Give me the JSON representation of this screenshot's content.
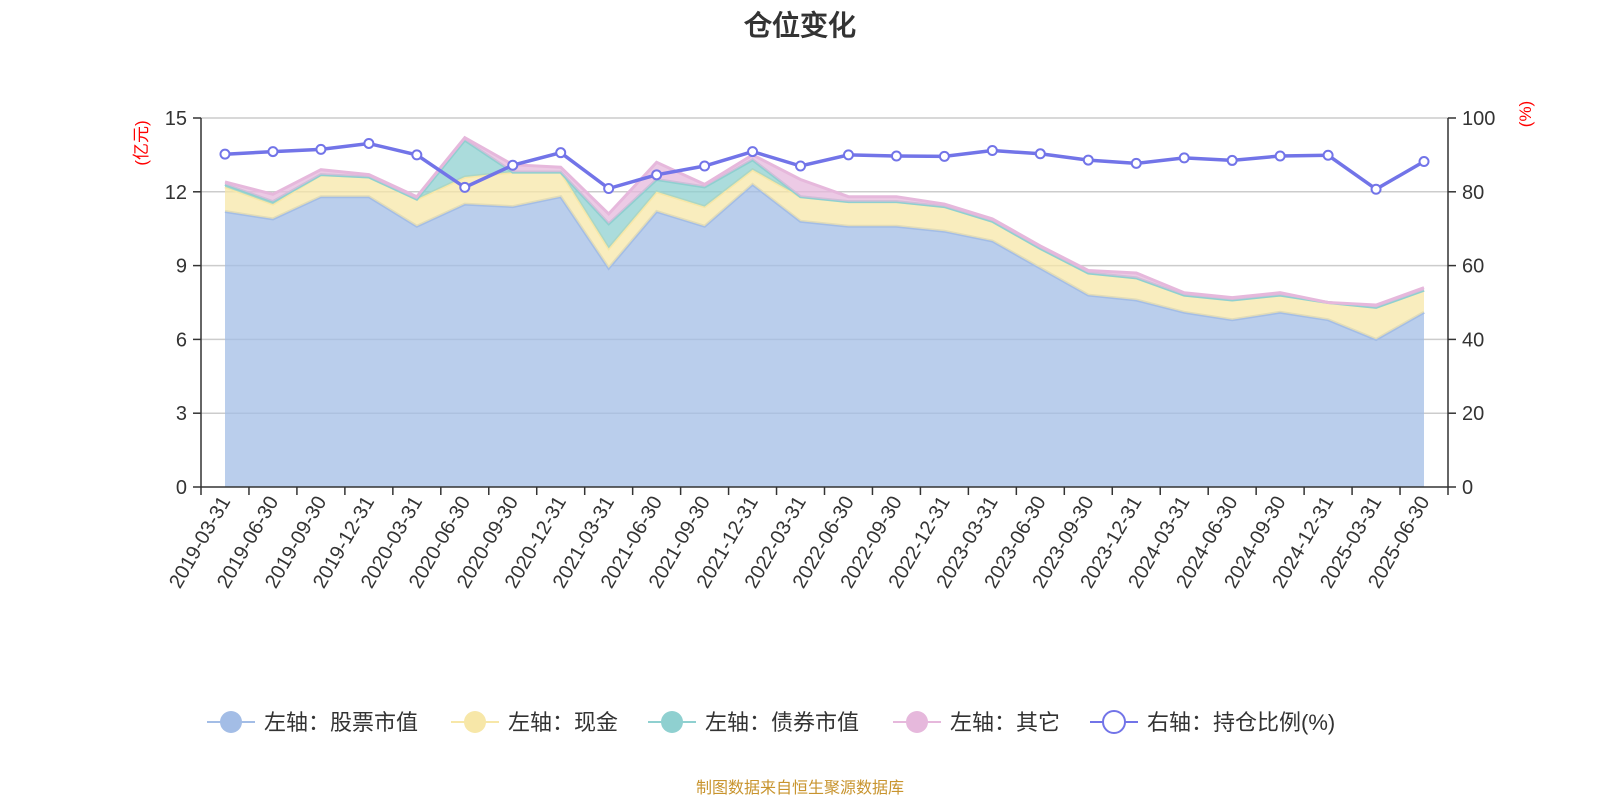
{
  "title": "仓位变化",
  "source_note": "制图数据来自恒生聚源数据库",
  "chart_data": {
    "type": "area",
    "title": "仓位变化",
    "x": [
      "2019-03-31",
      "2019-06-30",
      "2019-09-30",
      "2019-12-31",
      "2020-03-31",
      "2020-06-30",
      "2020-09-30",
      "2020-12-31",
      "2021-03-31",
      "2021-06-30",
      "2021-09-30",
      "2021-12-31",
      "2022-03-31",
      "2022-06-30",
      "2022-09-30",
      "2022-12-31",
      "2023-03-31",
      "2023-06-30",
      "2023-09-30",
      "2023-12-31",
      "2024-03-31",
      "2024-06-30",
      "2024-09-30",
      "2024-12-31",
      "2025-03-31",
      "2025-06-30"
    ],
    "left_axis": {
      "unit": "(亿元)",
      "ylim": [
        0,
        15
      ],
      "ticks": [
        0,
        3,
        6,
        9,
        12,
        15
      ]
    },
    "right_axis": {
      "unit": "(%)",
      "ylim": [
        0,
        100
      ],
      "ticks": [
        0,
        20,
        40,
        60,
        80,
        100
      ]
    },
    "grid": true,
    "legend_position": "bottom",
    "series": [
      {
        "name": "左轴：股票市值",
        "axis": "left",
        "type": "area",
        "color": "#a3bde6",
        "values": [
          11.2,
          10.9,
          11.8,
          11.8,
          10.6,
          11.5,
          11.4,
          11.8,
          8.9,
          11.2,
          10.6,
          12.3,
          10.8,
          10.6,
          10.6,
          10.4,
          10.0,
          8.9,
          7.8,
          7.6,
          7.1,
          6.8,
          7.1,
          6.8,
          6.0,
          7.1
        ]
      },
      {
        "name": "左轴：现金",
        "axis": "left",
        "type": "area",
        "color": "#f7e7a8",
        "values": [
          1.0,
          0.6,
          0.9,
          0.8,
          1.1,
          1.1,
          1.4,
          1.0,
          0.8,
          0.8,
          0.8,
          0.6,
          1.0,
          1.0,
          1.0,
          1.0,
          0.8,
          0.8,
          0.9,
          0.9,
          0.7,
          0.8,
          0.7,
          0.7,
          1.3,
          0.9
        ]
      },
      {
        "name": "左轴：债券市值",
        "axis": "left",
        "type": "area",
        "color": "#8fd0d0",
        "values": [
          0.1,
          0.1,
          0,
          0,
          0,
          1.5,
          0,
          0,
          1.0,
          0.5,
          0.8,
          0.4,
          0,
          0,
          0,
          0,
          0,
          0,
          0,
          0,
          0,
          0,
          0,
          0,
          0,
          0
        ]
      },
      {
        "name": "左轴：其它",
        "axis": "left",
        "type": "area",
        "color": "#e6b8dc",
        "values": [
          0.1,
          0.3,
          0.2,
          0.1,
          0.1,
          0.1,
          0.3,
          0.2,
          0.4,
          0.7,
          0.1,
          0.2,
          0.7,
          0.2,
          0.2,
          0.1,
          0.1,
          0.1,
          0.1,
          0.2,
          0.1,
          0.1,
          0.1,
          0,
          0.1,
          0.1
        ]
      },
      {
        "name": "右轴：持仓比例(%)",
        "axis": "right",
        "type": "line",
        "color": "#7274e8",
        "values": [
          90.2,
          90.9,
          91.5,
          93.1,
          90.0,
          81.2,
          87.2,
          90.6,
          80.9,
          84.6,
          87.0,
          90.9,
          87.0,
          90.0,
          89.7,
          89.6,
          91.2,
          90.3,
          88.6,
          87.7,
          89.2,
          88.5,
          89.7,
          89.9,
          80.7,
          88.2
        ]
      }
    ]
  }
}
